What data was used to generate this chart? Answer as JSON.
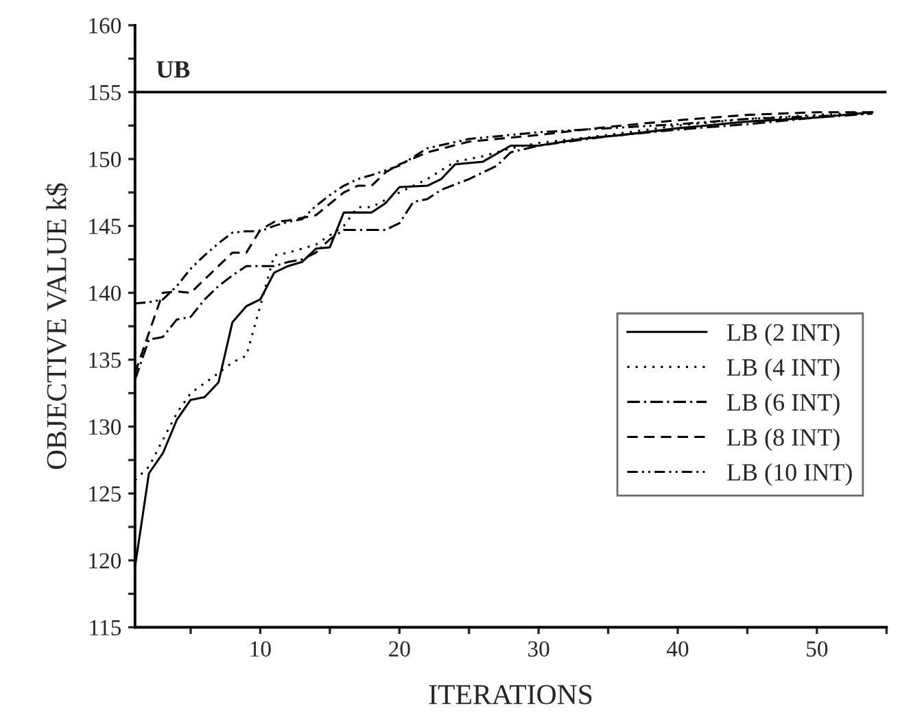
{
  "chart_data": {
    "type": "line",
    "xlabel": "ITERATIONS",
    "ylabel": "OBJECTIVE VALUE k$",
    "xlim": [
      1,
      55
    ],
    "ylim": [
      115,
      160
    ],
    "xticks": [
      {
        "value": 5,
        "label": null
      },
      10,
      {
        "value": 15,
        "label": null
      },
      20,
      {
        "value": 25,
        "label": null
      },
      30,
      {
        "value": 35,
        "label": null
      },
      40,
      {
        "value": 45,
        "label": null
      },
      50,
      {
        "value": 55,
        "label": null
      }
    ],
    "yticks": [
      115,
      {
        "value": 117.5,
        "label": null
      },
      120,
      {
        "value": 122.5,
        "label": null
      },
      125,
      {
        "value": 127.5,
        "label": null
      },
      130,
      {
        "value": 132.5,
        "label": null
      },
      135,
      {
        "value": 137.5,
        "label": null
      },
      140,
      {
        "value": 142.5,
        "label": null
      },
      145,
      {
        "value": 147.5,
        "label": null
      },
      150,
      {
        "value": 152.5,
        "label": null
      },
      155,
      {
        "value": 157.5,
        "label": null
      },
      160
    ],
    "grid": false,
    "legend": "right",
    "marker": "none",
    "ref_lines": [
      {
        "axis": "y",
        "value": 155,
        "label": "UB",
        "color": "#000000",
        "line_style": "solid"
      }
    ],
    "series": [
      {
        "name": "LB (2 INT)",
        "color": "#000000",
        "line_style": "solid",
        "x": [
          1,
          2,
          3,
          4,
          5,
          6,
          7,
          8,
          9,
          10,
          11,
          12,
          13,
          14,
          15,
          16,
          17,
          18,
          19,
          20,
          22,
          23,
          24,
          26,
          28,
          30,
          33,
          36,
          40,
          45,
          50,
          54
        ],
        "values": [
          119.5,
          126.5,
          128,
          130.5,
          132,
          132.2,
          133.3,
          137.8,
          139,
          139.5,
          141.5,
          142,
          142.3,
          143.3,
          143.4,
          146,
          146,
          146,
          146.7,
          147.9,
          148,
          148.5,
          149.6,
          149.8,
          151,
          151,
          151.5,
          151.8,
          152.3,
          152.8,
          153.1,
          153.5
        ]
      },
      {
        "name": "LB (4 INT)",
        "color": "#000000",
        "line_style": "dotted",
        "x": [
          1,
          2,
          3,
          4,
          5,
          7,
          8,
          9,
          10,
          11,
          12,
          14,
          16,
          17,
          18,
          20,
          22,
          24,
          26,
          28,
          30,
          35,
          40,
          45,
          50,
          54
        ],
        "values": [
          126,
          127,
          129,
          131,
          132.5,
          134,
          134.8,
          135.3,
          139,
          142.8,
          143,
          143.6,
          145,
          146.4,
          146.4,
          147.5,
          148.5,
          149.8,
          150.2,
          150.8,
          151.2,
          151.8,
          152.5,
          153,
          153.3,
          153.5
        ]
      },
      {
        "name": "LB (6 INT)",
        "color": "#000000",
        "line_style": "dashdot",
        "x": [
          1,
          2,
          3,
          4,
          5,
          6,
          7,
          8,
          9,
          10,
          11,
          12,
          13,
          14,
          15,
          16,
          19,
          20,
          21,
          22,
          23,
          25,
          27,
          28,
          30,
          35,
          40,
          45,
          50,
          54
        ],
        "values": [
          133.5,
          136.5,
          136.7,
          138,
          138.2,
          139.5,
          140.5,
          141.3,
          142,
          142,
          142,
          142.3,
          142.5,
          143,
          144,
          144.7,
          144.7,
          145.2,
          146.8,
          147,
          147.7,
          148.5,
          149.5,
          150.5,
          151,
          151.7,
          152.2,
          152.6,
          153.1,
          153.4
        ]
      },
      {
        "name": "LB (8 INT)",
        "color": "#000000",
        "line_style": "dashed",
        "x": [
          1,
          2,
          3,
          4,
          5,
          6,
          7,
          8,
          9,
          10,
          11,
          12,
          14,
          16,
          17,
          18,
          19,
          20,
          22,
          25,
          30,
          35,
          40,
          45,
          50,
          54
        ],
        "values": [
          134,
          137,
          140,
          140.1,
          140,
          141,
          142,
          143,
          143,
          144.7,
          145.3,
          145.4,
          145.8,
          147.5,
          148,
          148,
          149,
          149.6,
          150.5,
          151.3,
          151.8,
          152.4,
          152.9,
          153.3,
          153.5,
          153.5
        ]
      },
      {
        "name": "LB (10 INT)",
        "color": "#000000",
        "line_style": "dashdotdot",
        "x": [
          1,
          2,
          3,
          4,
          5,
          6,
          7,
          8,
          9,
          10,
          11,
          12,
          13,
          14,
          15,
          16,
          17,
          18,
          20,
          22,
          25,
          28,
          30,
          35,
          40,
          45,
          50,
          54
        ],
        "values": [
          139.2,
          139.3,
          139.5,
          140.5,
          141.8,
          142.8,
          143.7,
          144.5,
          144.6,
          144.6,
          145,
          145.3,
          145.5,
          146.5,
          147.3,
          148,
          148.5,
          148.8,
          149.5,
          150.8,
          151.5,
          151.8,
          152,
          152.3,
          152.6,
          153,
          153.2,
          153.4
        ]
      }
    ]
  }
}
